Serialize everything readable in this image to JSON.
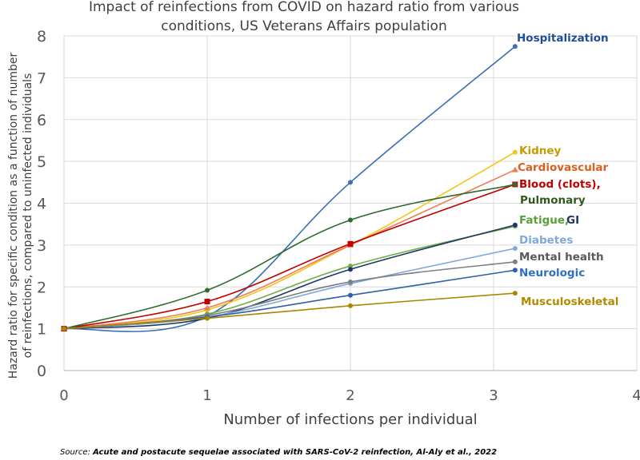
{
  "chart_data": {
    "type": "line",
    "title_line1": "Impact of reinfections from COVID on hazard ratio from various",
    "title_line2": "conditions, US Veterans Affairs population",
    "xlabel": "Number of infections per individual",
    "ylabel_line1": "Hazard ratio for specific condition as a function of number",
    "ylabel_line2": "of reinfections, compared to uninfected individuals",
    "xlim": [
      0,
      4
    ],
    "ylim": [
      0,
      8
    ],
    "x_ticks": [
      "0",
      "1",
      "2",
      "3",
      "4"
    ],
    "y_ticks": [
      "0",
      "1",
      "2",
      "3",
      "4",
      "5",
      "6",
      "7",
      "8"
    ],
    "grid": true,
    "x": [
      0,
      1,
      2,
      3.15
    ],
    "series": [
      {
        "name": "Hospitalization",
        "values": [
          1.0,
          1.3,
          4.5,
          7.75
        ],
        "color": "#3b6fb6",
        "label_color": "#1f4e96",
        "marker": "circle"
      },
      {
        "name": "Kidney",
        "values": [
          1.0,
          1.45,
          3.0,
          5.22
        ],
        "color": "#f5c518",
        "label_color": "#c99a00",
        "marker": "circle"
      },
      {
        "name": "Cardiovascular",
        "values": [
          1.0,
          1.5,
          3.0,
          4.8
        ],
        "color": "#ed7d54",
        "label_color": "#d9601f",
        "marker": "triangle"
      },
      {
        "name": "Blood (clots),",
        "values": [
          1.0,
          1.65,
          3.03,
          4.45
        ],
        "color": "#c00000",
        "label_color": "#c00000",
        "marker": "square"
      },
      {
        "name": "Pulmonary",
        "values": [
          1.0,
          1.92,
          3.6,
          4.45
        ],
        "color": "#2e6b2e",
        "label_color": "#2e5a1f",
        "marker": "circle"
      },
      {
        "name": "Fatigue,",
        "values": [
          1.0,
          1.35,
          2.5,
          3.45
        ],
        "color": "#70ad47",
        "label_color": "#5aa03a",
        "marker": "circle"
      },
      {
        "name": "GI",
        "values": [
          1.0,
          1.25,
          2.42,
          3.48
        ],
        "color": "#1f3864",
        "label_color": "#1f3864",
        "marker": "circle"
      },
      {
        "name": "Diabetes",
        "values": [
          1.0,
          1.28,
          2.08,
          2.92
        ],
        "color": "#7fa8dc",
        "label_color": "#7fa8dc",
        "marker": "circle"
      },
      {
        "name": "Mental health",
        "values": [
          1.0,
          1.32,
          2.12,
          2.6
        ],
        "color": "#7f7f7f",
        "label_color": "#595959",
        "marker": "circle"
      },
      {
        "name": "Neurologic",
        "values": [
          1.0,
          1.28,
          1.8,
          2.4
        ],
        "color": "#2f5fa8",
        "label_color": "#2f6fc4",
        "marker": "circle"
      },
      {
        "name": "Musculoskeletal",
        "values": [
          1.0,
          1.25,
          1.55,
          1.85
        ],
        "color": "#a88600",
        "label_color": "#b08a00",
        "marker": "circle"
      }
    ],
    "source_prefix": "Source: ",
    "source_text": "Acute and postacute sequelae associated with SARS-CoV-2 reinfection, Al-Aly et al., 2022"
  }
}
